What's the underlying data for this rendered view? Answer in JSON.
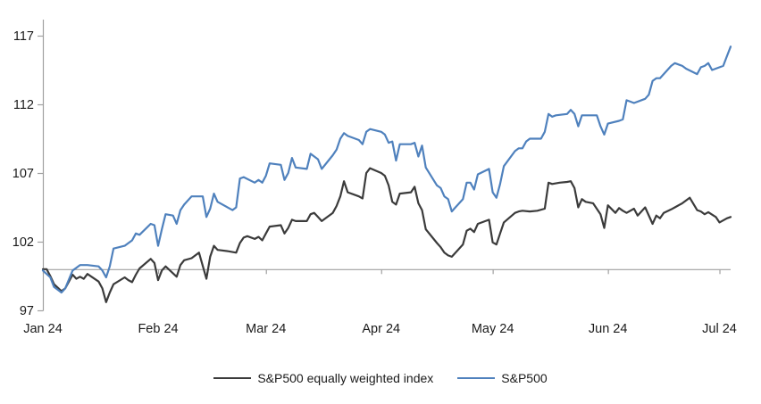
{
  "chart_data": {
    "type": "line",
    "title": "",
    "x_axis": {
      "tick_labels": [
        "Jan 24",
        "Feb 24",
        "Mar 24",
        "Apr 24",
        "May 24",
        "Jun 24",
        "Jul 24"
      ],
      "tick_days": [
        0,
        31,
        60,
        91,
        121,
        152,
        182
      ],
      "domain_days": [
        0,
        185
      ]
    },
    "y_axis": {
      "tick_labels": [
        "97",
        "102",
        "107",
        "112",
        "117"
      ],
      "tick_values": [
        97,
        102,
        107,
        112,
        117
      ],
      "range": [
        97,
        117
      ],
      "axis_cross_value": 100,
      "base_value": 100
    },
    "grid": "off",
    "legend_position": "bottom-center",
    "axis_color": "#a0a0a0",
    "text_color": "#1a1a1a",
    "series": [
      {
        "name": "S&P500 equally weighted index",
        "color": "#3b3b3b",
        "points": [
          [
            0,
            100
          ],
          [
            1,
            100
          ],
          [
            2,
            99.5
          ],
          [
            3,
            98.9
          ],
          [
            5,
            98.4
          ],
          [
            6,
            98.6
          ],
          [
            8,
            99.6
          ],
          [
            9,
            99.3
          ],
          [
            10,
            99.45
          ],
          [
            11,
            99.3
          ],
          [
            12,
            99.65
          ],
          [
            15,
            99.1
          ],
          [
            16,
            98.6
          ],
          [
            17,
            97.6
          ],
          [
            18,
            98.3
          ],
          [
            19,
            98.9
          ],
          [
            22,
            99.4
          ],
          [
            23,
            99.2
          ],
          [
            24,
            99.05
          ],
          [
            25,
            99.6
          ],
          [
            26,
            100.05
          ],
          [
            29,
            100.75
          ],
          [
            30,
            100.45
          ],
          [
            31,
            99.2
          ],
          [
            32,
            99.9
          ],
          [
            33,
            100.2
          ],
          [
            36,
            99.45
          ],
          [
            37,
            100.3
          ],
          [
            38,
            100.65
          ],
          [
            40,
            100.8
          ],
          [
            42,
            101.2
          ],
          [
            44,
            99.3
          ],
          [
            45,
            100.9
          ],
          [
            46,
            101.7
          ],
          [
            47,
            101.4
          ],
          [
            50,
            101.3
          ],
          [
            52,
            101.2
          ],
          [
            53,
            101.9
          ],
          [
            54,
            102.3
          ],
          [
            55,
            102.4
          ],
          [
            57,
            102.2
          ],
          [
            58,
            102.35
          ],
          [
            59,
            102.1
          ],
          [
            60,
            102.6
          ],
          [
            61,
            103.1
          ],
          [
            64,
            103.2
          ],
          [
            65,
            102.6
          ],
          [
            66,
            103.0
          ],
          [
            67,
            103.6
          ],
          [
            68,
            103.5
          ],
          [
            71,
            103.5
          ],
          [
            72,
            104.0
          ],
          [
            73,
            104.1
          ],
          [
            74,
            103.8
          ],
          [
            75,
            103.5
          ],
          [
            78,
            104.1
          ],
          [
            79,
            104.6
          ],
          [
            80,
            105.3
          ],
          [
            81,
            106.4
          ],
          [
            82,
            105.6
          ],
          [
            85,
            105.3
          ],
          [
            86,
            105.15
          ],
          [
            87,
            107.0
          ],
          [
            88,
            107.35
          ],
          [
            91,
            107.0
          ],
          [
            92,
            106.8
          ],
          [
            93,
            106.1
          ],
          [
            94,
            104.9
          ],
          [
            95,
            104.7
          ],
          [
            96,
            105.5
          ],
          [
            99,
            105.6
          ],
          [
            100,
            106.0
          ],
          [
            101,
            104.8
          ],
          [
            102,
            104.3
          ],
          [
            103,
            102.9
          ],
          [
            106,
            101.9
          ],
          [
            107,
            101.6
          ],
          [
            108,
            101.2
          ],
          [
            109,
            101.0
          ],
          [
            110,
            100.9
          ],
          [
            113,
            101.8
          ],
          [
            114,
            102.8
          ],
          [
            115,
            102.95
          ],
          [
            116,
            102.7
          ],
          [
            117,
            103.3
          ],
          [
            120,
            103.6
          ],
          [
            121,
            101.95
          ],
          [
            122,
            101.8
          ],
          [
            123,
            102.6
          ],
          [
            124,
            103.4
          ],
          [
            127,
            104.1
          ],
          [
            128,
            104.2
          ],
          [
            129,
            104.25
          ],
          [
            131,
            104.2
          ],
          [
            133,
            104.25
          ],
          [
            135,
            104.4
          ],
          [
            136,
            106.3
          ],
          [
            137,
            106.2
          ],
          [
            139,
            106.3
          ],
          [
            141,
            106.35
          ],
          [
            142,
            106.4
          ],
          [
            143,
            105.9
          ],
          [
            144,
            104.5
          ],
          [
            145,
            105.1
          ],
          [
            146,
            104.9
          ],
          [
            148,
            104.8
          ],
          [
            150,
            104.0
          ],
          [
            151,
            103.0
          ],
          [
            152,
            104.65
          ],
          [
            154,
            104.1
          ],
          [
            155,
            104.45
          ],
          [
            156,
            104.25
          ],
          [
            157,
            104.1
          ],
          [
            159,
            104.4
          ],
          [
            160,
            103.9
          ],
          [
            161,
            104.2
          ],
          [
            162,
            104.5
          ],
          [
            164,
            103.3
          ],
          [
            165,
            103.9
          ],
          [
            166,
            103.7
          ],
          [
            167,
            104.1
          ],
          [
            169,
            104.35
          ],
          [
            170,
            104.5
          ],
          [
            172,
            104.8
          ],
          [
            174,
            105.2
          ],
          [
            176,
            104.3
          ],
          [
            177,
            104.2
          ],
          [
            178,
            104.0
          ],
          [
            179,
            104.15
          ],
          [
            181,
            103.8
          ],
          [
            182,
            103.4
          ],
          [
            184,
            103.7
          ],
          [
            185,
            103.8
          ]
        ]
      },
      {
        "name": "S&P500",
        "color": "#4f81bd",
        "points": [
          [
            0,
            99.9
          ],
          [
            2,
            99.4
          ],
          [
            3,
            98.7
          ],
          [
            5,
            98.3
          ],
          [
            6,
            98.6
          ],
          [
            8,
            99.9
          ],
          [
            9,
            100.1
          ],
          [
            10,
            100.3
          ],
          [
            12,
            100.3
          ],
          [
            15,
            100.2
          ],
          [
            16,
            99.9
          ],
          [
            17,
            99.4
          ],
          [
            18,
            100.2
          ],
          [
            19,
            101.5
          ],
          [
            22,
            101.7
          ],
          [
            24,
            102.1
          ],
          [
            25,
            102.6
          ],
          [
            26,
            102.5
          ],
          [
            29,
            103.3
          ],
          [
            30,
            103.2
          ],
          [
            31,
            101.7
          ],
          [
            32,
            102.9
          ],
          [
            33,
            104.0
          ],
          [
            35,
            103.9
          ],
          [
            36,
            103.3
          ],
          [
            37,
            104.3
          ],
          [
            38,
            104.7
          ],
          [
            40,
            105.3
          ],
          [
            43,
            105.3
          ],
          [
            44,
            103.8
          ],
          [
            45,
            104.4
          ],
          [
            46,
            105.5
          ],
          [
            47,
            104.9
          ],
          [
            51,
            104.3
          ],
          [
            52,
            104.5
          ],
          [
            53,
            106.6
          ],
          [
            54,
            106.7
          ],
          [
            57,
            106.3
          ],
          [
            58,
            106.5
          ],
          [
            59,
            106.3
          ],
          [
            60,
            106.8
          ],
          [
            61,
            107.7
          ],
          [
            64,
            107.6
          ],
          [
            65,
            106.5
          ],
          [
            66,
            107.0
          ],
          [
            67,
            108.1
          ],
          [
            68,
            107.4
          ],
          [
            71,
            107.3
          ],
          [
            72,
            108.4
          ],
          [
            74,
            108.0
          ],
          [
            75,
            107.3
          ],
          [
            78,
            108.3
          ],
          [
            79,
            108.7
          ],
          [
            80,
            109.5
          ],
          [
            81,
            109.9
          ],
          [
            82,
            109.7
          ],
          [
            85,
            109.4
          ],
          [
            86,
            109.1
          ],
          [
            87,
            110.0
          ],
          [
            88,
            110.2
          ],
          [
            91,
            110.0
          ],
          [
            92,
            109.8
          ],
          [
            93,
            109.2
          ],
          [
            94,
            109.3
          ],
          [
            95,
            107.9
          ],
          [
            96,
            109.1
          ],
          [
            99,
            109.1
          ],
          [
            100,
            109.2
          ],
          [
            101,
            108.2
          ],
          [
            102,
            109.0
          ],
          [
            103,
            107.4
          ],
          [
            106,
            106.1
          ],
          [
            107,
            105.9
          ],
          [
            108,
            105.3
          ],
          [
            109,
            105.1
          ],
          [
            110,
            104.2
          ],
          [
            113,
            105.1
          ],
          [
            114,
            106.3
          ],
          [
            115,
            106.3
          ],
          [
            116,
            105.8
          ],
          [
            117,
            106.9
          ],
          [
            120,
            107.3
          ],
          [
            121,
            105.6
          ],
          [
            122,
            105.2
          ],
          [
            123,
            106.2
          ],
          [
            124,
            107.5
          ],
          [
            127,
            108.6
          ],
          [
            128,
            108.8
          ],
          [
            129,
            108.8
          ],
          [
            130,
            109.3
          ],
          [
            131,
            109.5
          ],
          [
            134,
            109.5
          ],
          [
            135,
            110.0
          ],
          [
            136,
            111.3
          ],
          [
            137,
            111.1
          ],
          [
            138,
            111.2
          ],
          [
            141,
            111.3
          ],
          [
            142,
            111.6
          ],
          [
            143,
            111.3
          ],
          [
            144,
            110.4
          ],
          [
            145,
            111.2
          ],
          [
            149,
            111.2
          ],
          [
            150,
            110.4
          ],
          [
            151,
            109.8
          ],
          [
            152,
            110.6
          ],
          [
            155,
            110.8
          ],
          [
            156,
            110.9
          ],
          [
            157,
            112.3
          ],
          [
            158,
            112.2
          ],
          [
            159,
            112.1
          ],
          [
            162,
            112.4
          ],
          [
            163,
            112.7
          ],
          [
            164,
            113.7
          ],
          [
            165,
            113.9
          ],
          [
            166,
            113.9
          ],
          [
            169,
            114.8
          ],
          [
            170,
            115.0
          ],
          [
            172,
            114.8
          ],
          [
            173,
            114.6
          ],
          [
            176,
            114.2
          ],
          [
            177,
            114.7
          ],
          [
            178,
            114.8
          ],
          [
            179,
            115.0
          ],
          [
            180,
            114.5
          ],
          [
            183,
            114.8
          ],
          [
            184,
            115.5
          ],
          [
            185,
            116.2
          ]
        ]
      }
    ]
  },
  "legend": {
    "items": [
      {
        "label": "S&P500 equally weighted index"
      },
      {
        "label": "S&P500"
      }
    ]
  }
}
